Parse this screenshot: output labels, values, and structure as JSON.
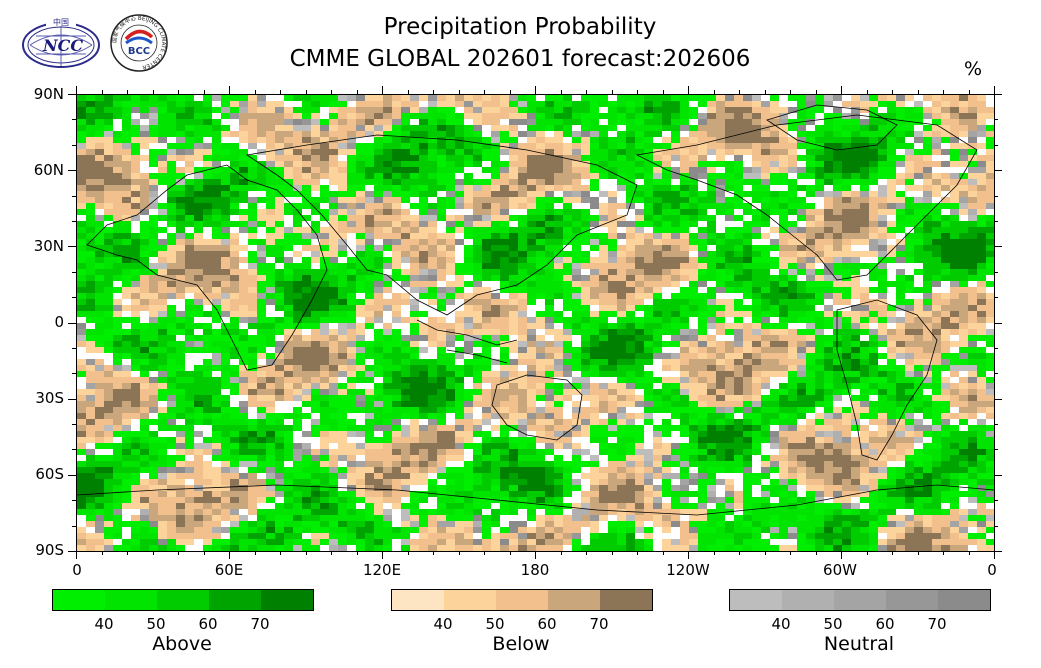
{
  "header": {
    "title_line1": "Precipitation Probability",
    "title_line2": "CMME GLOBAL 202601 forecast:202606",
    "unit": "%"
  },
  "logos": {
    "ncc": {
      "text": "NCC",
      "top_text": "中国"
    },
    "bcc": {
      "text": "BCC",
      "ring_text": "国家气候中心 BEIJING CLIMATE CENTER"
    }
  },
  "map": {
    "lat_labels": [
      "90N",
      "60N",
      "30N",
      "0",
      "30S",
      "60S",
      "90S"
    ],
    "lon_labels": [
      "0",
      "60E",
      "120E",
      "180",
      "120W",
      "60W",
      "0"
    ]
  },
  "legend": [
    {
      "name": "Above",
      "ticks": [
        "40",
        "50",
        "60",
        "70"
      ],
      "colors": [
        "#00ee00",
        "#00e400",
        "#00cc00",
        "#00a400",
        "#008000"
      ]
    },
    {
      "name": "Below",
      "ticks": [
        "40",
        "50",
        "60",
        "70"
      ],
      "colors": [
        "#fde4c2",
        "#fcd39b",
        "#f1c08c",
        "#c9a67c",
        "#8c7457"
      ]
    },
    {
      "name": "Neutral",
      "ticks": [
        "40",
        "50",
        "60",
        "70"
      ],
      "colors": [
        "#bdbdbd",
        "#b0b0b0",
        "#a4a4a4",
        "#979797",
        "#8b8b8b"
      ]
    }
  ]
}
